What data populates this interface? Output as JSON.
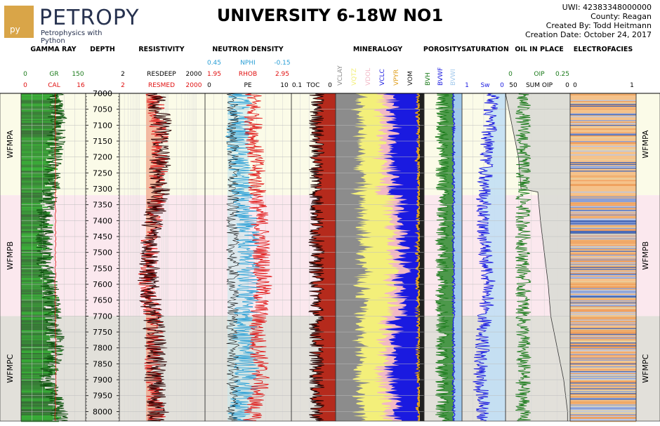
{
  "logo": {
    "text": "PETROPY",
    "badge": "py",
    "tagline": "Petrophysics with Python"
  },
  "title": "UNIVERSITY 6-18W NO1",
  "meta": {
    "uwi": "UWI: 42383348000000",
    "county": "County: Reagan",
    "created_by": "Created By: Todd Heitmann",
    "creation_date": "Creation Date: October 24, 2017"
  },
  "track_titles": {
    "gamma_ray": "GAMMA RAY",
    "depth": "DEPTH",
    "resistivity": "RESISTIVITY",
    "neutron_density": "NEUTRON DENSITY",
    "mineralogy": "MINERALOGY",
    "porosity": "POROSITY",
    "saturation": "SATURATION",
    "oil_in_place": "OIL IN PLACE",
    "electrofacies": "ELECTROFACIES"
  },
  "curve_headers": {
    "gr": {
      "name": "GR",
      "min": "0",
      "max": "150",
      "color": "#1a7a1a"
    },
    "cal": {
      "name": "CAL",
      "min": "0",
      "max": "16",
      "color": "#e01010"
    },
    "depth_nums": {
      "a": "2",
      "b": "2"
    },
    "resdeep": {
      "name": "RESDEEP",
      "max": "2000",
      "color": "#000000"
    },
    "resmed": {
      "name": "RESMED",
      "max": "2000",
      "color": "#e01010"
    },
    "nphi": {
      "name": "NPHI",
      "min": "0.45",
      "max": "-0.15",
      "color": "#2a9fd6"
    },
    "rhob": {
      "name": "RHOB",
      "min": "1.95",
      "max": "2.95",
      "color": "#e01010"
    },
    "pe": {
      "name": "PE",
      "min": "0",
      "max": "10",
      "color": "#000000"
    },
    "toc": {
      "name": "TOC",
      "min": "0.1",
      "max": "0"
    },
    "mineral_labels": [
      {
        "name": "VCLAY",
        "color": "#8c8c8c"
      },
      {
        "name": "VQTZ",
        "color": "#f3ef7a"
      },
      {
        "name": "VDOL",
        "color": "#f2b8c6"
      },
      {
        "name": "VCLC",
        "color": "#1a1ae0"
      },
      {
        "name": "VPYR",
        "color": "#e0a020"
      },
      {
        "name": "VOM",
        "color": "#202020"
      }
    ],
    "porosity_labels": [
      {
        "name": "BVH",
        "color": "#1a7a1a"
      },
      {
        "name": "BVWF",
        "color": "#1a1ae0"
      },
      {
        "name": "BVWI",
        "color": "#a0c8ec"
      }
    ],
    "sw": {
      "name": "Sw",
      "min": "1",
      "max": "0",
      "color": "#1a1ae0"
    },
    "oip": {
      "name": "OIP",
      "min": "0",
      "max": "0.25",
      "color": "#1a7a1a"
    },
    "sum_oip": {
      "name": "SUM OIP",
      "min": "50",
      "max": "0"
    },
    "efac": {
      "min": "0",
      "max": "1"
    }
  },
  "zones": [
    {
      "name": "WFMPA",
      "top": 7000,
      "bottom": 7320,
      "color": "#fbfbe8"
    },
    {
      "name": "WFMPB",
      "top": 7320,
      "bottom": 7700,
      "color": "#fbe8ee"
    },
    {
      "name": "WFMPC",
      "top": 7700,
      "bottom": 8030,
      "color": "#e2e0da"
    }
  ],
  "chart_data": {
    "type": "line",
    "depth_range": [
      7000,
      8030
    ],
    "depth_ticks": [
      7000,
      7050,
      7100,
      7150,
      7200,
      7250,
      7300,
      7350,
      7400,
      7450,
      7500,
      7550,
      7600,
      7650,
      7700,
      7750,
      7800,
      7850,
      7900,
      7950,
      8000
    ],
    "tracks": [
      {
        "name": "GAMMA RAY",
        "series": [
          {
            "name": "GR",
            "range": [
              0,
              150
            ],
            "depths": [
              7000,
              7100,
              7200,
              7300,
              7350,
              7450,
              7550,
              7650,
              7700,
              7800,
              7900,
              8000
            ],
            "values": [
              80,
              85,
              75,
              70,
              60,
              55,
              60,
              70,
              75,
              80,
              60,
              90
            ]
          },
          {
            "name": "CAL",
            "range": [
              0,
              16
            ],
            "depths": [
              7000,
              7300,
              7600,
              7900,
              8000
            ],
            "values": [
              8.5,
              8.5,
              8.5,
              8.6,
              8.5
            ]
          }
        ]
      },
      {
        "name": "RESISTIVITY",
        "series": [
          {
            "name": "RESDEEP",
            "range": [
              2,
              2000
            ],
            "depths": [
              7000,
              7100,
              7200,
              7300,
              7400,
              7500,
              7600,
              7700,
              7800,
              7900,
              8000
            ],
            "values": [
              40,
              60,
              55,
              50,
              30,
              25,
              20,
              30,
              40,
              35,
              45
            ]
          },
          {
            "name": "RESMED",
            "range": [
              2,
              2000
            ],
            "depths": [
              7000,
              7150,
              7300,
              7450,
              7600,
              7750,
              7900,
              8000
            ],
            "values": [
              35,
              50,
              45,
              25,
              18,
              35,
              30,
              40
            ]
          }
        ]
      },
      {
        "name": "NEUTRON DENSITY",
        "series": [
          {
            "name": "NPHI",
            "range": [
              0.45,
              -0.15
            ],
            "depths": [
              7000,
              7150,
              7300,
              7450,
              7600,
              7750,
              7900,
              8000
            ],
            "values": [
              0.2,
              0.22,
              0.18,
              0.15,
              0.14,
              0.18,
              0.16,
              0.2
            ]
          },
          {
            "name": "RHOB",
            "range": [
              1.95,
              2.95
            ],
            "depths": [
              7000,
              7150,
              7300,
              7450,
              7600,
              7750,
              7900,
              8000
            ],
            "values": [
              2.5,
              2.52,
              2.55,
              2.6,
              2.62,
              2.55,
              2.6,
              2.5
            ]
          }
        ]
      },
      {
        "name": "SATURATION",
        "series": [
          {
            "name": "Sw",
            "range": [
              1,
              0
            ],
            "depths": [
              7000,
              7150,
              7300,
              7450,
              7600,
              7750,
              7900,
              8000
            ],
            "values": [
              0.3,
              0.4,
              0.5,
              0.5,
              0.4,
              0.5,
              0.6,
              0.5
            ]
          }
        ]
      },
      {
        "name": "OIL IN PLACE",
        "series": [
          {
            "name": "SUM OIP",
            "range": [
              50,
              0
            ],
            "depths": [
              7000,
              7100,
              7200,
              7300,
              7310,
              7400,
              7500,
              7600,
              7700,
              7800,
              7900,
              8000
            ],
            "values": [
              50,
              45,
              40,
              38,
              25,
              23,
              20,
              17,
              15,
              10,
              5,
              2
            ]
          }
        ]
      }
    ]
  }
}
